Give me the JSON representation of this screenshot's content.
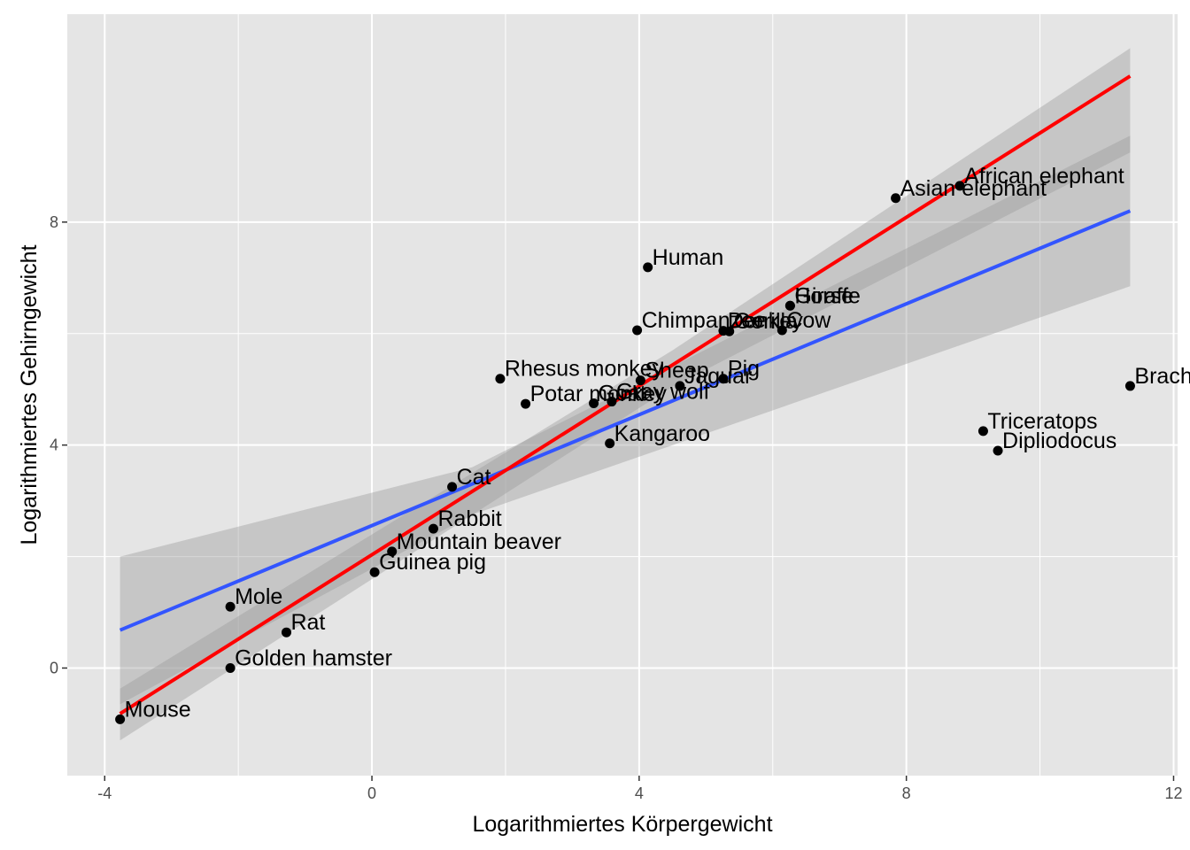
{
  "chart_data": {
    "type": "scatter",
    "title": "",
    "xlabel": "Logarithmiertes Körpergewicht",
    "ylabel": "Logarithmiertes Gehirngewicht",
    "xlim": [
      -4.56,
      12.06
    ],
    "ylim": [
      -1.93,
      11.73
    ],
    "xticks": [
      -4,
      0,
      4,
      8,
      12
    ],
    "yticks": [
      0,
      4,
      8
    ],
    "xtick_labels": [
      "-4",
      "0",
      "4",
      "8",
      "12"
    ],
    "ytick_labels": [
      "0",
      "4",
      "8"
    ],
    "grid": true,
    "legend": "none",
    "colors": {
      "panel": "#e5e5e5",
      "grid_major": "#ffffff",
      "points": "#000000",
      "fit_all": "#3355ff",
      "fit_subset": "#ff0000",
      "ribbon": "#999999"
    },
    "points": [
      {
        "label": "Mouse",
        "x": -3.77,
        "y": -0.92
      },
      {
        "label": "Golden hamster",
        "x": -2.12,
        "y": 0.0
      },
      {
        "label": "Rat",
        "x": -1.28,
        "y": 0.64
      },
      {
        "label": "Mole",
        "x": -2.12,
        "y": 1.1
      },
      {
        "label": "Guinea pig",
        "x": 0.04,
        "y": 1.72
      },
      {
        "label": "Mountain beaver",
        "x": 0.3,
        "y": 2.09
      },
      {
        "label": "Rabbit",
        "x": 0.92,
        "y": 2.5
      },
      {
        "label": "Cat",
        "x": 1.2,
        "y": 3.25
      },
      {
        "label": "Kangaroo",
        "x": 3.56,
        "y": 4.03
      },
      {
        "label": "Potar monkey",
        "x": 2.3,
        "y": 4.74
      },
      {
        "label": "Goat",
        "x": 3.32,
        "y": 4.75
      },
      {
        "label": "Gray wolf",
        "x": 3.59,
        "y": 4.78
      },
      {
        "label": "Rhesus monkey",
        "x": 1.92,
        "y": 5.19
      },
      {
        "label": "Sheep",
        "x": 4.02,
        "y": 5.16
      },
      {
        "label": "Jaguar",
        "x": 4.61,
        "y": 5.06
      },
      {
        "label": "Pig",
        "x": 5.26,
        "y": 5.19
      },
      {
        "label": "Chimpanzee",
        "x": 3.97,
        "y": 6.06
      },
      {
        "label": "Human",
        "x": 4.13,
        "y": 7.19
      },
      {
        "label": "Gorilla",
        "x": 5.35,
        "y": 6.04
      },
      {
        "label": "Cow",
        "x": 6.14,
        "y": 6.06
      },
      {
        "label": "Donkey",
        "x": 5.26,
        "y": 6.05
      },
      {
        "label": "Horse",
        "x": 6.26,
        "y": 6.5
      },
      {
        "label": "Giraffe",
        "x": 6.26,
        "y": 6.5
      },
      {
        "label": "Asian elephant",
        "x": 7.84,
        "y": 8.43
      },
      {
        "label": "African elephant",
        "x": 8.8,
        "y": 8.65
      },
      {
        "label": "Triceratops",
        "x": 9.15,
        "y": 4.25
      },
      {
        "label": "Dipliodocus",
        "x": 9.37,
        "y": 3.9
      },
      {
        "label": "Brachiosaurus",
        "x": 11.35,
        "y": 5.06
      }
    ],
    "series": [
      {
        "color": "#3355ff",
        "x": [
          -3.77,
          11.35
        ],
        "y": [
          0.68,
          8.2
        ]
      },
      {
        "color": "#ff0000",
        "x": [
          -3.77,
          11.35
        ],
        "y": [
          -0.82,
          10.62
        ]
      }
    ],
    "ribbons": [
      {
        "for": "#3355ff",
        "x": [
          -3.77,
          1.5,
          11.35
        ],
        "lower": [
          -0.65,
          2.75,
          6.85
        ],
        "upper": [
          2.0,
          3.6,
          9.55
        ]
      },
      {
        "for": "#ff0000",
        "x": [
          -3.77,
          4.5,
          11.35
        ],
        "lower": [
          -1.3,
          5.05,
          9.25
        ],
        "upper": [
          -0.37,
          5.7,
          11.12
        ]
      }
    ]
  }
}
